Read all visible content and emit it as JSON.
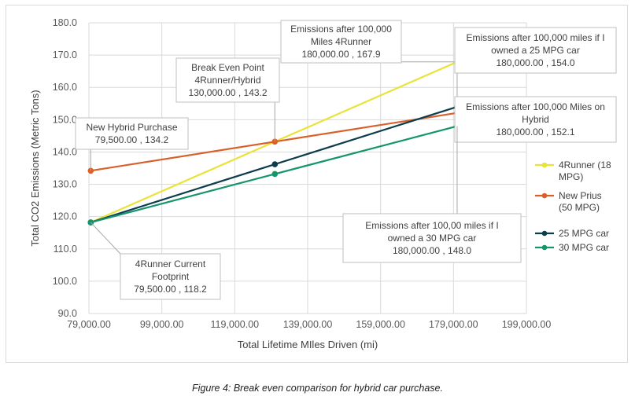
{
  "chart_data": {
    "type": "line",
    "title": "",
    "xlabel": "Total Lifetime MIles Driven (mi)",
    "ylabel": "Total CO2 Emissions (Metric Tons)",
    "xlim": [
      79000,
      199000
    ],
    "ylim": [
      90,
      180
    ],
    "x_ticks": [
      "79,000.00",
      "99,000.00",
      "119,000.00",
      "139,000.00",
      "159,000.00",
      "179,000.00",
      "199,000.00"
    ],
    "y_ticks": [
      "90.0",
      "100.0",
      "110.0",
      "120.0",
      "130.0",
      "140.0",
      "150.0",
      "160.0",
      "170.0",
      "180.0"
    ],
    "grid": "vertical and horizontal",
    "legend_position": "right",
    "series": [
      {
        "name": "4Runner (18 MPG)",
        "legend_lines": [
          "4Runner (18",
          "MPG)"
        ],
        "color": "#e8e337",
        "x": [
          79500,
          130000,
          180000
        ],
        "y": [
          118.2,
          143.2,
          167.9
        ]
      },
      {
        "name": "New Prius (50 MPG)",
        "legend_lines": [
          "New Prius",
          "(50 MPG)"
        ],
        "color": "#d9602b",
        "x": [
          79500,
          130000,
          180000
        ],
        "y": [
          134.2,
          143.2,
          152.1
        ]
      },
      {
        "name": "25 MPG car",
        "legend_lines": [
          "25 MPG car"
        ],
        "color": "#0d3d4d",
        "x": [
          79500,
          130000,
          180000
        ],
        "y": [
          118.2,
          136.2,
          154.0
        ]
      },
      {
        "name": "30 MPG car",
        "legend_lines": [
          "30 MPG car"
        ],
        "color": "#15956c",
        "x": [
          79500,
          130000,
          180000
        ],
        "y": [
          118.2,
          133.2,
          148.0
        ]
      }
    ],
    "annotations": [
      {
        "lines": [
          "New Hybrid Purchase",
          "79,500.00 , 134.2"
        ],
        "x": 79500,
        "y": 134.2
      },
      {
        "lines": [
          "Break Even Point",
          "4Runner/Hybrid",
          "130,000.00 , 143.2"
        ],
        "x": 130000,
        "y": 143.2
      },
      {
        "lines": [
          "Emissions after 100,000",
          "Miles 4Runner",
          "180,000.00 , 167.9"
        ],
        "x": 180000,
        "y": 167.9
      },
      {
        "lines": [
          "Emissions after 100,000 miles if I",
          "owned a 25 MPG car",
          "180,000.00 , 154.0"
        ],
        "x": 180000,
        "y": 154.0
      },
      {
        "lines": [
          "Emissions after 100,000 Miles on",
          "Hybrid",
          "180,000.00 , 152.1"
        ],
        "x": 180000,
        "y": 152.1
      },
      {
        "lines": [
          "Emissions after 100,00 miles if I",
          "owned a 30 MPG car",
          "180,000.00 , 148.0"
        ],
        "x": 180000,
        "y": 148.0
      },
      {
        "lines": [
          "4Runner Current",
          "Footprint",
          "79,500.00 , 118.2"
        ],
        "x": 79500,
        "y": 118.2
      }
    ]
  },
  "caption": "Figure 4: Break even comparison for hybrid car purchase."
}
